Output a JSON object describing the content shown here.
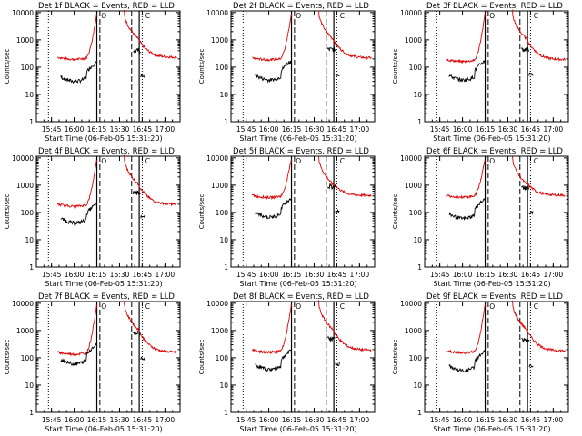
{
  "layout_note_free": true,
  "colors": {
    "events": "#000000",
    "lld": "#e00000",
    "axis": "#000000",
    "background": "#ffffff"
  },
  "shared": {
    "xlabel": "Start Time (06-Feb-05 15:31:20)",
    "ylabel": "Counts/sec",
    "x_tick_labels": [
      "15:45",
      "16:00",
      "16:15",
      "16:30",
      "16:45",
      "17:00"
    ],
    "y_tick_labels": [
      "1",
      "10",
      "100",
      "1000",
      "10000"
    ],
    "marker_o": "O",
    "marker_c": "C"
  },
  "chart_data": [
    {
      "type": "line",
      "title": "Det 1f BLACK = Events, RED = LLD",
      "xlabel": "Start Time (06-Feb-05 15:31:20)",
      "ylabel": "Counts/sec",
      "xlim": [
        "15:35",
        "17:10"
      ],
      "ylim": [
        1,
        10000
      ],
      "yscale": "log",
      "x_ticks": [
        "15:45",
        "16:00",
        "16:15",
        "16:30",
        "16:45",
        "17:00"
      ],
      "lld_base": 230,
      "events_base": 40,
      "vlines": {
        "dotted": [
          "15:43",
          "16:45"
        ],
        "solid": [
          "16:15",
          "16:43"
        ],
        "dashed": [
          "16:17",
          "16:38"
        ]
      },
      "series": [
        {
          "name": "BLACK = Events",
          "values_note": "background ~40-60 counts/sec before 16:15, rising to ~120 at 16:10"
        },
        {
          "name": "RED = LLD",
          "values_note": "~230-260 counts/sec background, saturates above 10000 at 16:15"
        }
      ]
    },
    {
      "type": "line",
      "title": "Det 2f BLACK = Events, RED = LLD",
      "xlabel": "Start Time (06-Feb-05 15:31:20)",
      "ylabel": "Counts/sec",
      "xlim": [
        "15:35",
        "17:10"
      ],
      "ylim": [
        1,
        10000
      ],
      "yscale": "log",
      "x_ticks": [
        "15:45",
        "16:00",
        "16:15",
        "16:30",
        "16:45",
        "17:00"
      ],
      "lld_base": 220,
      "events_base": 45,
      "vlines": {
        "dotted": [
          "15:43",
          "16:45"
        ],
        "solid": [
          "16:15",
          "16:43"
        ],
        "dashed": [
          "16:17",
          "16:38"
        ]
      },
      "series": [
        {
          "name": "BLACK = Events"
        },
        {
          "name": "RED = LLD"
        }
      ]
    },
    {
      "type": "line",
      "title": "Det 3f BLACK = Events, RED = LLD",
      "xlabel": "Start Time (06-Feb-05 15:31:20)",
      "ylabel": "Counts/sec",
      "xlim": [
        "15:35",
        "17:10"
      ],
      "ylim": [
        1,
        10000
      ],
      "yscale": "log",
      "x_ticks": [
        "15:45",
        "16:00",
        "16:15",
        "16:30",
        "16:45",
        "17:00"
      ],
      "lld_base": 190,
      "events_base": 45,
      "vlines": {
        "dotted": [
          "15:43",
          "16:45"
        ],
        "solid": [
          "16:15",
          "16:43"
        ],
        "dashed": [
          "16:17",
          "16:38"
        ]
      },
      "series": [
        {
          "name": "BLACK = Events"
        },
        {
          "name": "RED = LLD"
        }
      ]
    },
    {
      "type": "line",
      "title": "Det 4f BLACK = Events, RED = LLD",
      "xlabel": "Start Time (06-Feb-05 15:31:20)",
      "ylabel": "Counts/sec",
      "xlim": [
        "15:35",
        "17:10"
      ],
      "ylim": [
        1,
        10000
      ],
      "yscale": "log",
      "x_ticks": [
        "15:45",
        "16:00",
        "16:15",
        "16:30",
        "16:45",
        "17:00"
      ],
      "lld_base": 200,
      "events_base": 55,
      "vlines": {
        "dotted": [
          "15:43",
          "16:45"
        ],
        "solid": [
          "16:15",
          "16:43"
        ],
        "dashed": [
          "16:17",
          "16:38"
        ]
      },
      "series": [
        {
          "name": "BLACK = Events"
        },
        {
          "name": "RED = LLD"
        }
      ]
    },
    {
      "type": "line",
      "title": "Det 5f BLACK = Events, RED = LLD",
      "xlabel": "Start Time (06-Feb-05 15:31:20)",
      "ylabel": "Counts/sec",
      "xlim": [
        "15:35",
        "17:10"
      ],
      "ylim": [
        1,
        10000
      ],
      "yscale": "log",
      "x_ticks": [
        "15:45",
        "16:00",
        "16:15",
        "16:30",
        "16:45",
        "17:00"
      ],
      "lld_base": 420,
      "events_base": 90,
      "vlines": {
        "dotted": [
          "15:43",
          "16:45"
        ],
        "solid": [
          "16:15",
          "16:43"
        ],
        "dashed": [
          "16:17",
          "16:38"
        ]
      },
      "series": [
        {
          "name": "BLACK = Events"
        },
        {
          "name": "RED = LLD"
        }
      ]
    },
    {
      "type": "line",
      "title": "Det 6f BLACK = Events, RED = LLD",
      "xlabel": "Start Time (06-Feb-05 15:31:20)",
      "ylabel": "Counts/sec",
      "xlim": [
        "15:35",
        "17:10"
      ],
      "ylim": [
        1,
        10000
      ],
      "yscale": "log",
      "x_ticks": [
        "15:45",
        "16:00",
        "16:15",
        "16:30",
        "16:45",
        "17:00"
      ],
      "lld_base": 430,
      "events_base": 80,
      "vlines": {
        "dotted": [
          "15:43",
          "16:45"
        ],
        "solid": [
          "16:15",
          "16:43"
        ],
        "dashed": [
          "16:17",
          "16:38"
        ]
      },
      "series": [
        {
          "name": "BLACK = Events"
        },
        {
          "name": "RED = LLD"
        }
      ]
    },
    {
      "type": "line",
      "title": "Det 7f BLACK = Events, RED = LLD",
      "xlabel": "Start Time (06-Feb-05 15:31:20)",
      "ylabel": "Counts/sec",
      "xlim": [
        "15:35",
        "17:10"
      ],
      "ylim": [
        1,
        10000
      ],
      "yscale": "log",
      "x_ticks": [
        "15:45",
        "16:00",
        "16:15",
        "16:30",
        "16:45",
        "17:00"
      ],
      "lld_base": 160,
      "events_base": 80,
      "vlines": {
        "dotted": [
          "15:43",
          "16:45"
        ],
        "solid": [
          "16:15",
          "16:43"
        ],
        "dashed": [
          "16:17",
          "16:38"
        ]
      },
      "series": [
        {
          "name": "BLACK = Events"
        },
        {
          "name": "RED = LLD"
        }
      ]
    },
    {
      "type": "line",
      "title": "Det 8f BLACK = Events, RED = LLD",
      "xlabel": "Start Time (06-Feb-05 15:31:20)",
      "ylabel": "Counts/sec",
      "xlim": [
        "15:35",
        "17:10"
      ],
      "ylim": [
        1,
        10000
      ],
      "yscale": "log",
      "x_ticks": [
        "15:45",
        "16:00",
        "16:15",
        "16:30",
        "16:45",
        "17:00"
      ],
      "lld_base": 190,
      "events_base": 50,
      "vlines": {
        "dotted": [
          "15:43",
          "16:45"
        ],
        "solid": [
          "16:15",
          "16:43"
        ],
        "dashed": [
          "16:17",
          "16:38"
        ]
      },
      "series": [
        {
          "name": "BLACK = Events"
        },
        {
          "name": "RED = LLD"
        }
      ]
    },
    {
      "type": "line",
      "title": "Det 9f BLACK = Events, RED = LLD",
      "xlabel": "Start Time (06-Feb-05 15:31:20)",
      "ylabel": "Counts/sec",
      "xlim": [
        "15:35",
        "17:10"
      ],
      "ylim": [
        1,
        10000
      ],
      "yscale": "log",
      "x_ticks": [
        "15:45",
        "16:00",
        "16:15",
        "16:30",
        "16:45",
        "17:00"
      ],
      "lld_base": 180,
      "events_base": 45,
      "vlines": {
        "dotted": [
          "15:43",
          "16:45"
        ],
        "solid": [
          "16:15",
          "16:43"
        ],
        "dashed": [
          "16:17",
          "16:38"
        ]
      },
      "series": [
        {
          "name": "BLACK = Events"
        },
        {
          "name": "RED = LLD"
        }
      ]
    }
  ]
}
